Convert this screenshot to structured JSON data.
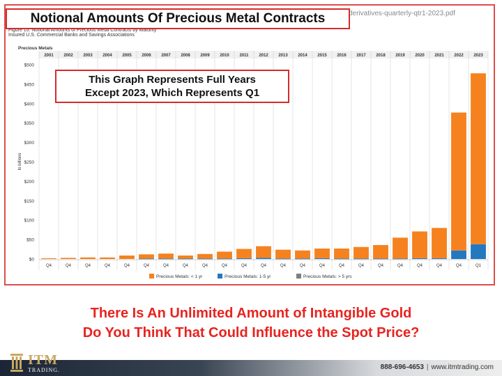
{
  "slide": {
    "title_callout": "Notional Amounts Of Precious Metal Contracts",
    "note_callout_line1": "This Graph Represents Full Years",
    "note_callout_line2": "Except 2023, Which Represents Q1",
    "headline_line1": "There Is An Unlimited Amount of Intangible Gold",
    "headline_line2": "Do You Think That Could Influence the Spot Price?",
    "file_name": "derivatives-quarterly-qtr1-2023.pdf",
    "source_line1": "Figure 15. Notional Amounts of Precious Metal Contracts by Maturity",
    "source_line2": "Insured U.S. Commercial Banks and Savings Associations",
    "panel_title": "Precious Metals"
  },
  "footer": {
    "logo_text": "ITM",
    "logo_sub": "TRADING.",
    "phone": "888-696-4653",
    "website": "www.itmtrading.com",
    "colors": {
      "bar_dark": "#1b2535",
      "logo_gold": "#c9a861"
    }
  },
  "chart_data": {
    "type": "bar",
    "stacked": true,
    "categories": [
      "2001",
      "2002",
      "2003",
      "2004",
      "2005",
      "2006",
      "2007",
      "2008",
      "2009",
      "2010",
      "2011",
      "2012",
      "2013",
      "2014",
      "2015",
      "2016",
      "2017",
      "2018",
      "2019",
      "2020",
      "2021",
      "2022",
      "2023"
    ],
    "period_labels": [
      "Q4",
      "Q4",
      "Q4",
      "Q4",
      "Q4",
      "Q4",
      "Q4",
      "Q4",
      "Q4",
      "Q4",
      "Q4",
      "Q4",
      "Q4",
      "Q4",
      "Q4",
      "Q4",
      "Q4",
      "Q4",
      "Q4",
      "Q4",
      "Q4",
      "Q4",
      "Q1"
    ],
    "series": [
      {
        "name": "Precious Metals: < 1 yr",
        "color": "#f5821f",
        "values": [
          2,
          3,
          4,
          4,
          9,
          11,
          13,
          8,
          12,
          18,
          24,
          30,
          23,
          21,
          25,
          26,
          30,
          35,
          54,
          69,
          78,
          355,
          440
        ]
      },
      {
        "name": "Precious Metals: 1-5 yr",
        "color": "#2378c0",
        "values": [
          0,
          0,
          0,
          0,
          0,
          1,
          1,
          1,
          1,
          1,
          2,
          3,
          1,
          1,
          2,
          1,
          1,
          1,
          1,
          2,
          2,
          22,
          38
        ]
      },
      {
        "name": "Precious Metals: > 5 yrs",
        "color": "#7f7f7f",
        "values": [
          0,
          0,
          0,
          0,
          0,
          0,
          0,
          0,
          0,
          0,
          0,
          0,
          0,
          0,
          0,
          0,
          0,
          0,
          0,
          0,
          0,
          0,
          0
        ]
      }
    ],
    "ylabel": "In billions",
    "ylim": [
      0,
      500
    ],
    "yticks": [
      "$0",
      "$50",
      "$100",
      "$150",
      "$200",
      "$250",
      "$300",
      "$350",
      "$400",
      "$450",
      "$500"
    ],
    "grid": "vertical",
    "legend": "bottom"
  }
}
